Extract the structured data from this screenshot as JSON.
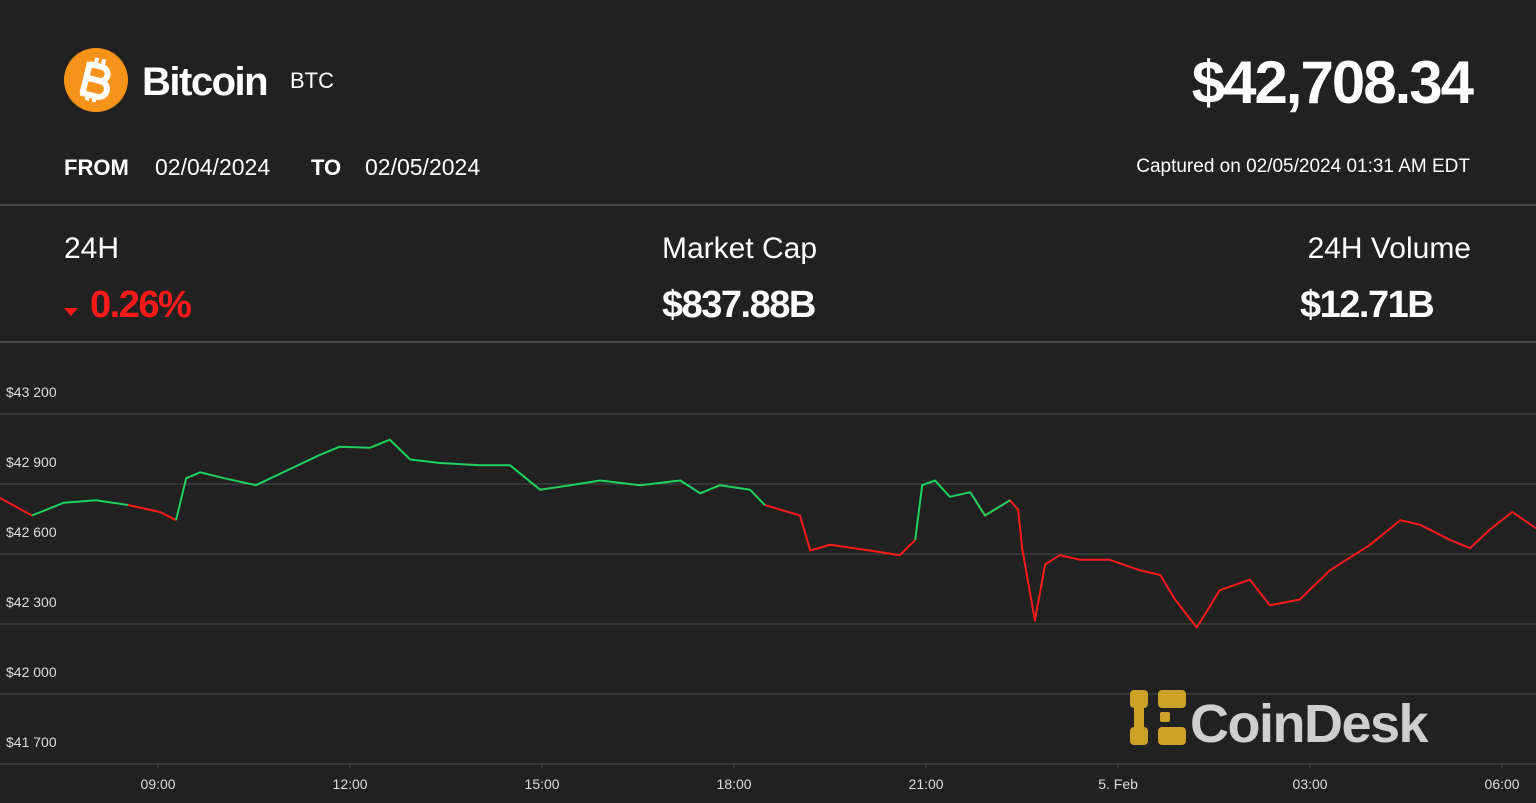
{
  "header": {
    "name": "Bitcoin",
    "symbol": "BTC",
    "price": "$42,708.34",
    "from_label": "FROM",
    "from_date": "02/04/2024",
    "to_label": "TO",
    "to_date": "02/05/2024",
    "captured": "Captured on 02/05/2024 01:31 AM EDT"
  },
  "stats": [
    {
      "label": "24H",
      "value": "0.26%"
    },
    {
      "label": "Market Cap",
      "value": "$837.88B"
    },
    {
      "label": "24H Volume",
      "value": "$12.71B"
    }
  ],
  "logo": {
    "text": "CoinDesk"
  },
  "chart_data": {
    "type": "line",
    "x": [
      6.53,
      7.03,
      7.53,
      8.03,
      8.53,
      9.03,
      9.28,
      9.44,
      9.66,
      10.03,
      10.53,
      11.03,
      11.53,
      11.84,
      12.31,
      12.62,
      12.94,
      13.41,
      14.03,
      14.5,
      14.97,
      15.44,
      15.91,
      16.53,
      17.16,
      17.47,
      17.78,
      18.25,
      18.48,
      19.03,
      19.19,
      19.5,
      20.12,
      20.59,
      20.83,
      20.94,
      21.14,
      21.37,
      21.69,
      21.92,
      22.31,
      22.44,
      22.5,
      22.7,
      22.86,
      23.09,
      23.41,
      23.87,
      24.34,
      24.66,
      24.89,
      25.23,
      25.59,
      26.06,
      26.37,
      26.84,
      27.31,
      27.94,
      28.41,
      28.72,
      29.19,
      29.5,
      29.81,
      30.16,
      30.53
    ],
    "series": [
      {
        "color": "#ff1a1a",
        "values": [
          42840,
          42765,
          null,
          null,
          42810,
          42780,
          42745,
          null,
          null,
          null,
          null,
          null,
          null,
          null,
          null,
          null,
          null,
          null,
          null,
          null,
          null,
          null,
          null,
          null,
          null,
          null,
          null,
          null,
          42810,
          42765,
          42615,
          42640,
          42615,
          42595,
          42660,
          null,
          null,
          null,
          42865,
          42765,
          42830,
          42790,
          42625,
          42315,
          42555,
          42595,
          42575,
          42575,
          42530,
          42510,
          42405,
          42285,
          42445,
          42490,
          42380,
          42405,
          42530,
          42640,
          42745,
          42725,
          42660,
          42625,
          42705,
          42780,
          42710
        ]
      },
      {
        "color": "#1fd15f",
        "values": [
          null,
          42765,
          42820,
          42830,
          42810,
          null,
          42745,
          42925,
          42950,
          42925,
          42895,
          42960,
          43025,
          43060,
          43055,
          43090,
          43005,
          42990,
          42980,
          42980,
          42875,
          42895,
          42915,
          42895,
          42915,
          42860,
          42895,
          42875,
          42810,
          null,
          null,
          null,
          null,
          null,
          42660,
          42895,
          42915,
          42845,
          42865,
          42765,
          42830,
          null,
          null,
          null,
          null,
          null,
          null,
          null,
          null,
          null,
          null,
          null,
          null,
          null,
          null,
          null,
          null,
          null,
          null,
          null,
          null,
          null,
          null,
          null,
          null
        ]
      }
    ],
    "xlim": [
      6.53,
      30.53
    ],
    "xticks": [
      {
        "value": 9,
        "label": "09:00"
      },
      {
        "value": 12,
        "label": "12:00"
      },
      {
        "value": 15,
        "label": "15:00"
      },
      {
        "value": 18,
        "label": "18:00"
      },
      {
        "value": 21,
        "label": "21:00"
      },
      {
        "value": 24,
        "label": "5. Feb"
      },
      {
        "value": 27,
        "label": "03:00"
      },
      {
        "value": 30,
        "label": "06:00"
      }
    ],
    "ylim": [
      41700,
      43500
    ],
    "yticks": [
      {
        "value": 41700,
        "label": "$41 700"
      },
      {
        "value": 42000,
        "label": "$42 000"
      },
      {
        "value": 42300,
        "label": "$42 300"
      },
      {
        "value": 42600,
        "label": "$42 600"
      },
      {
        "value": 42900,
        "label": "$42 900"
      },
      {
        "value": 43200,
        "label": "$43 200"
      }
    ],
    "grid": true
  }
}
